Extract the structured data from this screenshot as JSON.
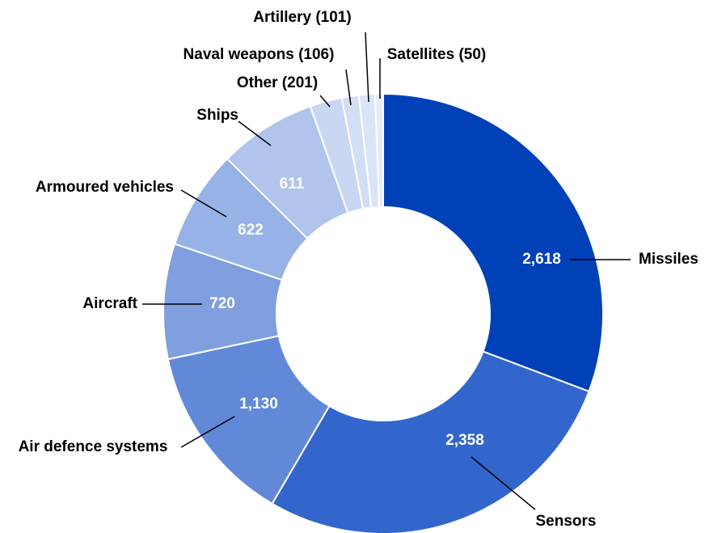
{
  "chart_data": {
    "type": "donut",
    "categories": [
      "Missiles",
      "Sensors",
      "Air defence systems",
      "Aircraft",
      "Armoured vehicles",
      "Ships",
      "Other (201)",
      "Naval weapons (106)",
      "Artillery (101)",
      "Satellites (50)"
    ],
    "values": [
      2618,
      2358,
      1130,
      720,
      622,
      611,
      201,
      106,
      101,
      50
    ],
    "value_labels": [
      "2,618",
      "2,358",
      "1,130",
      "720",
      "622",
      "611",
      null,
      null,
      null,
      null
    ],
    "colors": [
      "#0041b8",
      "#3366cc",
      "#6289d8",
      "#7f9fdf",
      "#97b2e6",
      "#b0c4ec",
      "#c9d7f2",
      "#d3def4",
      "#dbe4f6",
      "#e3eaf8"
    ]
  }
}
